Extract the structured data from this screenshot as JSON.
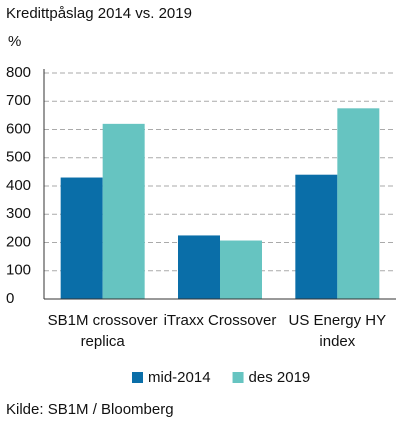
{
  "chart_data": {
    "type": "bar",
    "title": "Kredittpåslag 2014 vs. 2019",
    "y_label": "%",
    "categories": [
      "SB1M crossover replica",
      "iTraxx Crossover",
      "US Energy HY index"
    ],
    "series": [
      {
        "name": "mid-2014",
        "color": "#0a6ea8",
        "values": [
          430,
          225,
          440
        ]
      },
      {
        "name": "des 2019",
        "color": "#66c4c1",
        "values": [
          620,
          207,
          675
        ]
      }
    ],
    "ylim": [
      0,
      800
    ],
    "yticks": [
      0,
      100,
      200,
      300,
      400,
      500,
      600,
      700,
      800
    ],
    "grid": true,
    "source": "Kilde: SB1M / Bloomberg"
  }
}
